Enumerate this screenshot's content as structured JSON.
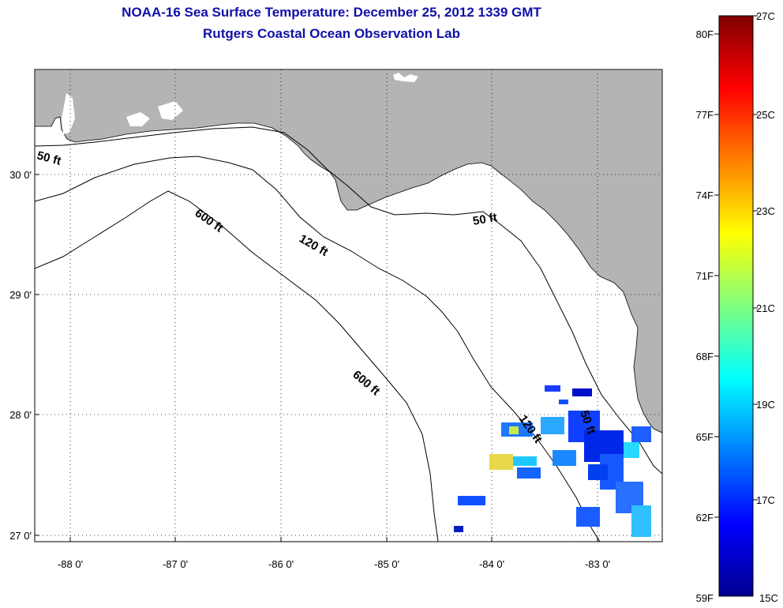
{
  "header": {
    "title": "NOAA-16 Sea Surface Temperature:  December 25, 2012 1339 GMT",
    "subtitle": "Rutgers Coastal Ocean Observation Lab"
  },
  "map": {
    "lon_labels": [
      "-88 0'",
      "-87 0'",
      "-86 0'",
      "-85 0'",
      "-84 0'",
      "-83 0'"
    ],
    "lat_labels": [
      "30 0'",
      "29 0'",
      "28 0'",
      "27 0'"
    ],
    "contours": [
      "50 ft",
      "600 ft",
      "120 ft",
      "50 ft",
      "600 ft",
      "120 ft",
      "50 ft"
    ],
    "colors": {
      "land": "#b4b4b4",
      "ocean": "#ffffff",
      "grid": "#000000"
    }
  },
  "colorbar": {
    "fahrenheit": [
      "80F",
      "77F",
      "74F",
      "71F",
      "68F",
      "65F",
      "62F",
      "59F"
    ],
    "celsius": [
      "27C",
      "25C",
      "23C",
      "21C",
      "19C",
      "17C",
      "15C"
    ]
  }
}
